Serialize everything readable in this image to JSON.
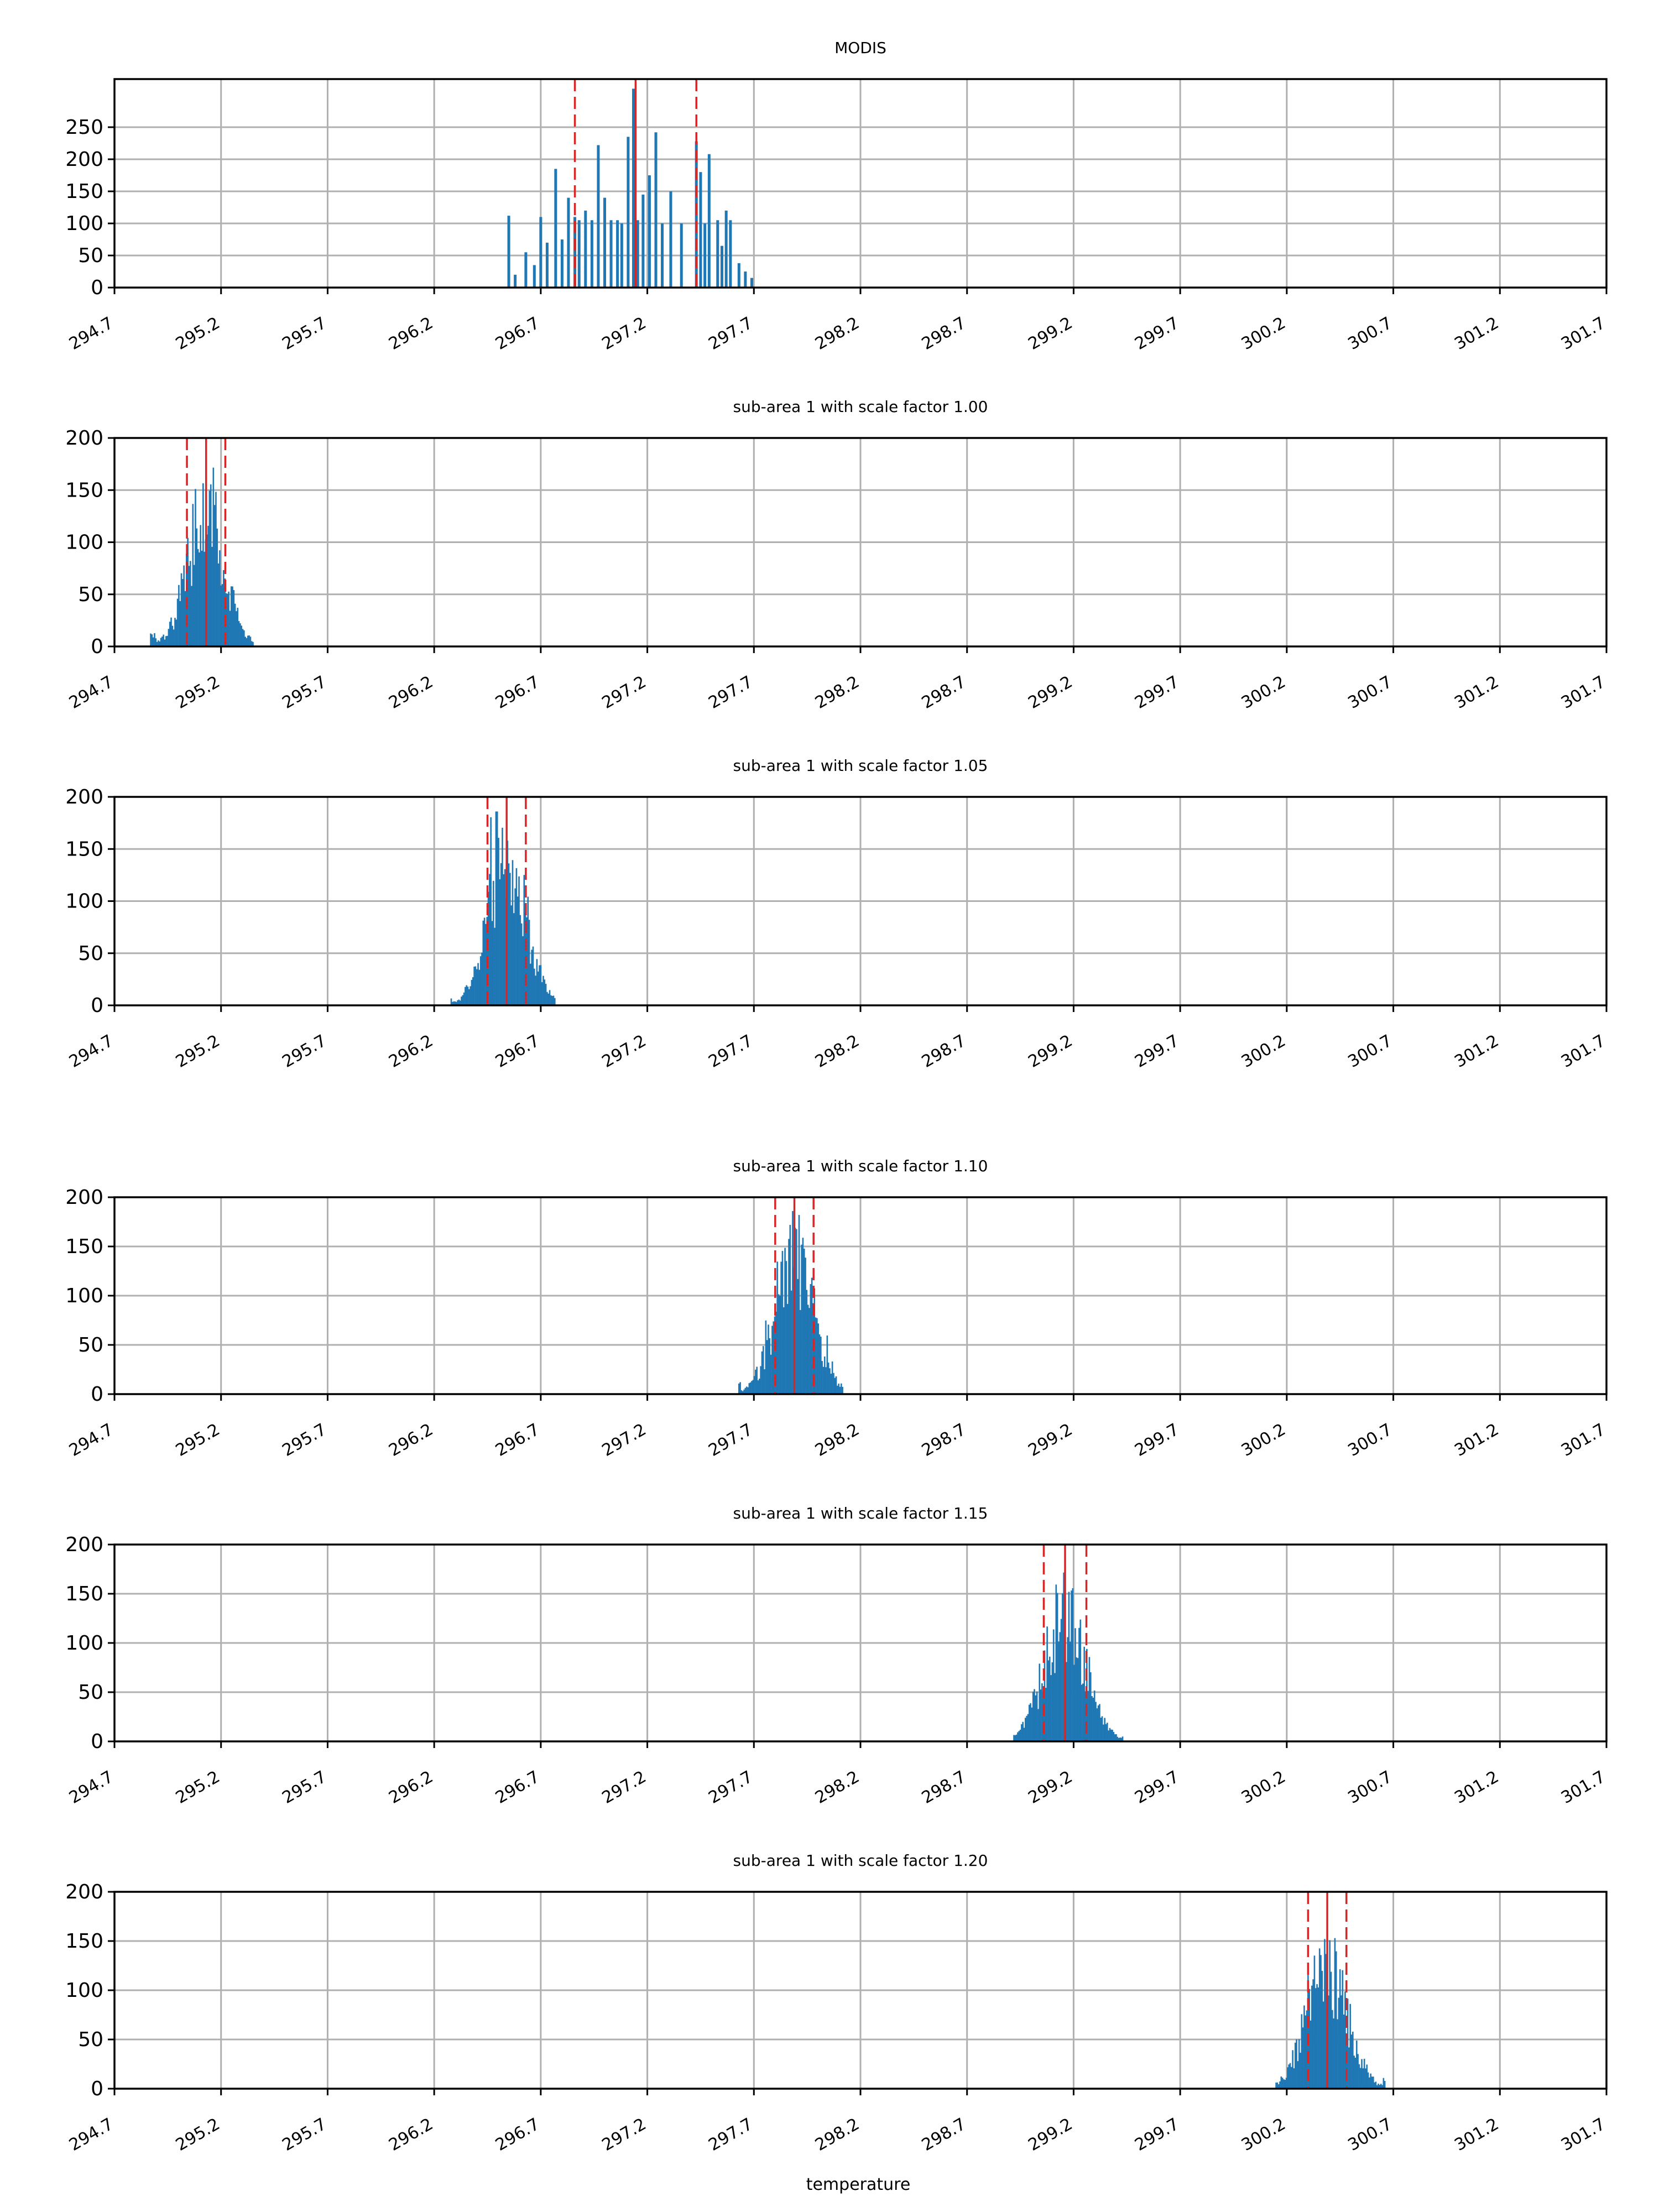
{
  "figure": {
    "xlabel": "temperature",
    "xticks": [
      "294.7",
      "295.2",
      "295.7",
      "296.2",
      "296.7",
      "297.2",
      "297.7",
      "298.2",
      "298.7",
      "299.2",
      "299.7",
      "300.2",
      "300.7",
      "301.2",
      "301.7"
    ],
    "colors": {
      "bars": "#1f77b4",
      "lines": "#d62728",
      "grid": "#b0b0b0",
      "axes": "#000000"
    }
  },
  "chart_data": [
    {
      "type": "bar",
      "title": "MODIS",
      "xlim": [
        294.7,
        301.7
      ],
      "ylim": [
        0,
        325
      ],
      "yticks": [
        0,
        50,
        100,
        150,
        200,
        250
      ],
      "grid": true,
      "bins": [
        {
          "x": 296.55,
          "y": 112
        },
        {
          "x": 296.58,
          "y": 20
        },
        {
          "x": 296.63,
          "y": 55
        },
        {
          "x": 296.67,
          "y": 35
        },
        {
          "x": 296.7,
          "y": 110
        },
        {
          "x": 296.73,
          "y": 70
        },
        {
          "x": 296.77,
          "y": 185
        },
        {
          "x": 296.8,
          "y": 75
        },
        {
          "x": 296.83,
          "y": 140
        },
        {
          "x": 296.86,
          "y": 110
        },
        {
          "x": 296.88,
          "y": 105
        },
        {
          "x": 296.91,
          "y": 120
        },
        {
          "x": 296.94,
          "y": 105
        },
        {
          "x": 296.97,
          "y": 222
        },
        {
          "x": 297.0,
          "y": 140
        },
        {
          "x": 297.03,
          "y": 105
        },
        {
          "x": 297.06,
          "y": 105
        },
        {
          "x": 297.08,
          "y": 100
        },
        {
          "x": 297.11,
          "y": 235
        },
        {
          "x": 297.135,
          "y": 310
        },
        {
          "x": 297.155,
          "y": 105
        },
        {
          "x": 297.18,
          "y": 145
        },
        {
          "x": 297.21,
          "y": 175
        },
        {
          "x": 297.24,
          "y": 242
        },
        {
          "x": 297.27,
          "y": 100
        },
        {
          "x": 297.31,
          "y": 150
        },
        {
          "x": 297.36,
          "y": 100
        },
        {
          "x": 297.43,
          "y": 228
        },
        {
          "x": 297.45,
          "y": 180
        },
        {
          "x": 297.47,
          "y": 100
        },
        {
          "x": 297.49,
          "y": 208
        },
        {
          "x": 297.53,
          "y": 105
        },
        {
          "x": 297.55,
          "y": 65
        },
        {
          "x": 297.57,
          "y": 120
        },
        {
          "x": 297.59,
          "y": 105
        },
        {
          "x": 297.63,
          "y": 38
        },
        {
          "x": 297.66,
          "y": 25
        },
        {
          "x": 297.69,
          "y": 15
        }
      ],
      "vlines": [
        {
          "x": 296.86,
          "style": "dashed"
        },
        {
          "x": 297.145,
          "style": "solid"
        },
        {
          "x": 297.43,
          "style": "dashed"
        }
      ]
    },
    {
      "type": "bar",
      "title": "sub-area 1 with scale factor 1.00",
      "xlim": [
        294.7,
        301.7
      ],
      "ylim": [
        0,
        200
      ],
      "yticks": [
        0,
        50,
        100,
        150,
        200
      ],
      "grid": true,
      "distribution": {
        "center": 295.13,
        "spread": 0.085,
        "peak": 145,
        "start": 294.87,
        "end": 295.35
      },
      "vlines": [
        {
          "x": 295.04,
          "style": "dashed"
        },
        {
          "x": 295.13,
          "style": "solid"
        },
        {
          "x": 295.22,
          "style": "dashed"
        }
      ]
    },
    {
      "type": "bar",
      "title": "sub-area 1 with scale factor 1.05",
      "xlim": [
        294.7,
        301.7
      ],
      "ylim": [
        0,
        200
      ],
      "yticks": [
        0,
        50,
        100,
        150,
        200
      ],
      "grid": true,
      "distribution": {
        "center": 296.54,
        "spread": 0.09,
        "peak": 150,
        "start": 296.28,
        "end": 296.77
      },
      "vlines": [
        {
          "x": 296.45,
          "style": "dashed"
        },
        {
          "x": 296.54,
          "style": "solid"
        },
        {
          "x": 296.63,
          "style": "dashed"
        }
      ]
    },
    {
      "type": "bar",
      "title": "sub-area 1 with scale factor 1.10",
      "xlim": [
        294.7,
        301.7
      ],
      "ylim": [
        0,
        200
      ],
      "yticks": [
        0,
        50,
        100,
        150,
        200
      ],
      "grid": true,
      "distribution": {
        "center": 297.89,
        "spread": 0.09,
        "peak": 150,
        "start": 297.63,
        "end": 298.12
      },
      "vlines": [
        {
          "x": 297.8,
          "style": "dashed"
        },
        {
          "x": 297.89,
          "style": "solid"
        },
        {
          "x": 297.98,
          "style": "dashed"
        }
      ]
    },
    {
      "type": "bar",
      "title": "sub-area 1 with scale factor 1.15",
      "xlim": [
        294.7,
        301.7
      ],
      "ylim": [
        0,
        200
      ],
      "yticks": [
        0,
        50,
        100,
        150,
        200
      ],
      "grid": true,
      "distribution": {
        "center": 299.16,
        "spread": 0.095,
        "peak": 140,
        "start": 298.92,
        "end": 299.43
      },
      "vlines": [
        {
          "x": 299.06,
          "style": "dashed"
        },
        {
          "x": 299.16,
          "style": "solid"
        },
        {
          "x": 299.26,
          "style": "dashed"
        }
      ]
    },
    {
      "type": "bar",
      "title": "sub-area 1 with scale factor 1.20",
      "xlim": [
        294.7,
        301.7
      ],
      "ylim": [
        0,
        200
      ],
      "yticks": [
        0,
        50,
        100,
        150,
        200
      ],
      "grid": true,
      "distribution": {
        "center": 300.39,
        "spread": 0.095,
        "peak": 130,
        "start": 300.15,
        "end": 300.66
      },
      "vlines": [
        {
          "x": 300.3,
          "style": "dashed"
        },
        {
          "x": 300.39,
          "style": "solid"
        },
        {
          "x": 300.48,
          "style": "dashed"
        }
      ]
    }
  ]
}
